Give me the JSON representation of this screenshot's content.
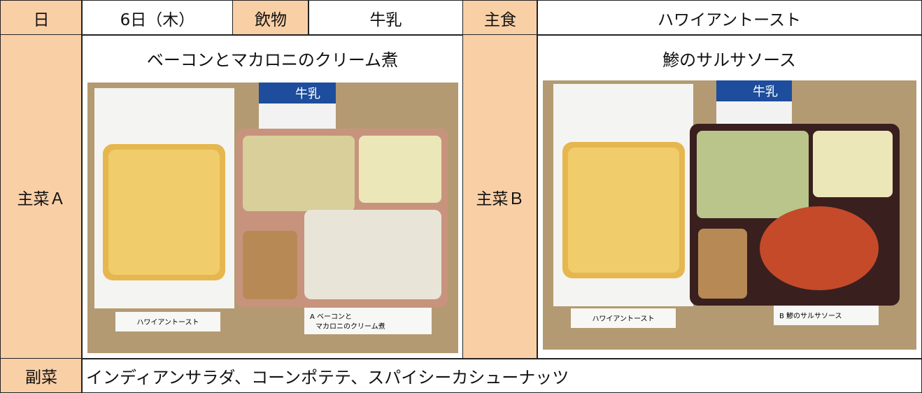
{
  "header": {
    "day_label": "日",
    "day": "6日（木）",
    "drink_label": "飲物",
    "drink": "牛乳",
    "staple_label": "主食",
    "staple": "ハワイアントースト"
  },
  "main_a": {
    "label": "主菜Ａ",
    "title": "ベーコンとマカロニのクリーム煮",
    "carton": "牛乳",
    "photo_labels": [
      "ハワイアントースト",
      "A ベーコンと",
      "マカロニのクリーム煮"
    ]
  },
  "main_b": {
    "label": "主菜Ｂ",
    "title": "鯵のサルサソース",
    "carton": "牛乳",
    "photo_labels": [
      "ハワイアントースト",
      "B 鯵のサルサソース"
    ]
  },
  "side": {
    "label": "副菜",
    "text": "インディアンサラダ、コーンポテテ、スパイシーカシューナッツ"
  }
}
